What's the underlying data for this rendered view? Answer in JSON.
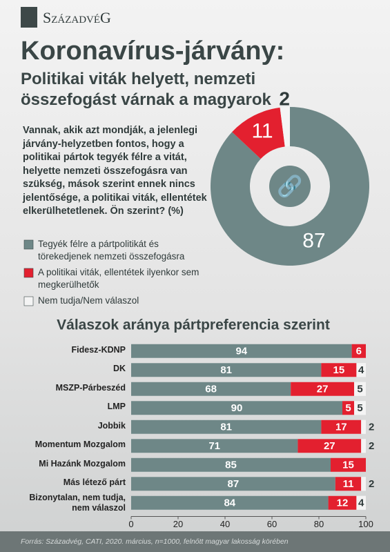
{
  "brand": "SzázadvéG",
  "title": "Koronavírus-járvány:",
  "subtitle": "Politikai viták helyett, nemzeti összefogást várnak a magyarok",
  "source": "Forrás: Századvég, CATI, 2020. március, n=1000, felnőtt magyar lakosság körében",
  "chart_data": [
    {
      "type": "pie",
      "title": "Vannak, akik azt mondják, a jelenlegi járvány-helyzetben fontos, hogy a politikai pártok tegyék félre a vitát, helyette nemzeti összefogásra van szükség, mások szerint ennek nincs jelentősége, a politikai viták, ellentétek elkerülhetetlenek. Ön szerint? (%)",
      "categories": [
        "Tegyék félre a pártpolitikát és törekedjenek nemzeti összefogásra",
        "A politikai viták, ellentétek ilyenkor sem megkerülhetők",
        "Nem tudja/Nem válaszol"
      ],
      "values": [
        87,
        11,
        2
      ],
      "colors": [
        "#6e8787",
        "#e3202f",
        "#f4f4f4"
      ]
    },
    {
      "type": "bar",
      "title": "Válaszok aránya pártpreferencia szerint",
      "categories": [
        "Fidesz-KDNP",
        "DK",
        "MSZP-Párbeszéd",
        "LMP",
        "Jobbik",
        "Momentum Mozgalom",
        "Mi Hazánk Mozgalom",
        "Más létező párt",
        "Bizonytalan, nem tudja, nem válaszol"
      ],
      "series": [
        {
          "name": "Tegyék félre a pártpolitikát és törekedjenek nemzeti összefogásra",
          "color": "#6e8787",
          "values": [
            94,
            81,
            68,
            90,
            81,
            71,
            85,
            87,
            84
          ]
        },
        {
          "name": "A politikai viták, ellentétek ilyenkor sem megkerülhetők",
          "color": "#e3202f",
          "values": [
            6,
            15,
            27,
            5,
            17,
            27,
            15,
            11,
            12
          ]
        },
        {
          "name": "Nem tudja/Nem válaszol",
          "color": "#f4f4f4",
          "values": [
            null,
            4,
            5,
            5,
            2,
            2,
            null,
            2,
            4
          ]
        }
      ],
      "xlim": [
        0,
        100
      ],
      "xticks": [
        0,
        20,
        40,
        60,
        80,
        100
      ]
    }
  ]
}
